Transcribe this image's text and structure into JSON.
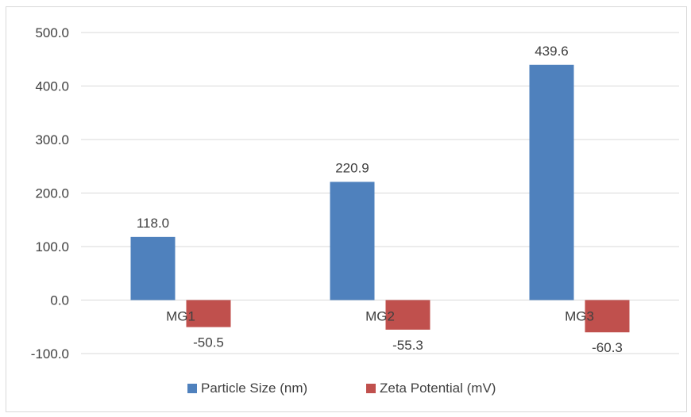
{
  "chart_data": {
    "type": "bar",
    "title": "",
    "xlabel": "",
    "ylabel": "",
    "categories": [
      "MG1",
      "MG2",
      "MG3"
    ],
    "series": [
      {
        "name": "Particle Size (nm)",
        "color": "#4f81bd",
        "values": [
          118.0,
          220.9,
          439.6
        ],
        "labels": [
          "118.0",
          "220.9",
          "439.6"
        ]
      },
      {
        "name": "Zeta Potential (mV)",
        "color": "#c0504d",
        "values": [
          -50.5,
          -55.3,
          -60.3
        ],
        "labels": [
          "-50.5",
          "-55.3",
          "-60.3"
        ]
      }
    ],
    "ylim": [
      -100,
      500
    ],
    "yticks": [
      500,
      400,
      300,
      200,
      100,
      0,
      -100
    ],
    "ytick_labels": [
      "500.0",
      "400.0",
      "300.0",
      "200.0",
      "100.0",
      "0.0",
      "-100.0"
    ],
    "grid": true,
    "legend_position": "bottom"
  }
}
